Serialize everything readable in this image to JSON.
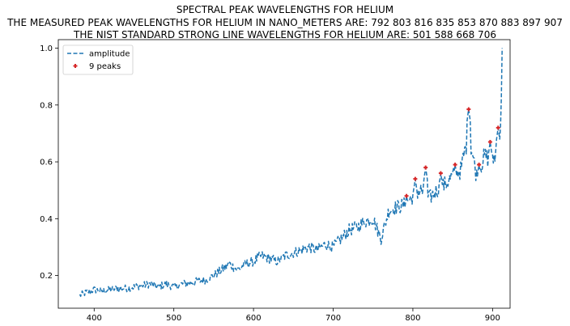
{
  "titles": {
    "line1": "SPECTRAL PEAK WAVELENGTHS FOR HELIUM",
    "line2": "THE MEASURED PEAK WAVELENGTHS FOR HELIUM IN NANO_METERS ARE: 792 803 816 835 853 870 883 897 907",
    "line3": "THE NIST STANDARD STRONG LINE WAVELENGTHS FOR HELIUM ARE: 501 588 668 706"
  },
  "legend": {
    "series_label": "amplitude",
    "peaks_label": "9 peaks"
  },
  "colors": {
    "series": "#1f77b4",
    "peaks": "#d62728"
  },
  "chart_data": {
    "type": "line",
    "title": "SPECTRAL PEAK WAVELENGTHS FOR HELIUM",
    "xlabel": "",
    "ylabel": "",
    "xlim": [
      355,
      922
    ],
    "ylim": [
      0.085,
      1.03
    ],
    "xticks": [
      400,
      500,
      600,
      700,
      800,
      900
    ],
    "yticks": [
      0.2,
      0.4,
      0.6,
      0.8,
      1.0
    ],
    "grid": false,
    "legend_position": "top-left",
    "series": [
      {
        "name": "amplitude",
        "style": "dashed",
        "x_range": [
          382,
          912
        ],
        "x": [
          382,
          390,
          400,
          410,
          420,
          430,
          440,
          450,
          460,
          470,
          480,
          490,
          500,
          510,
          520,
          530,
          540,
          550,
          560,
          570,
          580,
          590,
          600,
          610,
          620,
          630,
          640,
          650,
          660,
          670,
          680,
          690,
          700,
          710,
          720,
          730,
          740,
          750,
          760,
          770,
          780,
          790,
          800,
          810,
          820,
          830,
          840,
          850,
          860,
          870,
          880,
          890,
          900,
          905,
          910,
          912
        ],
        "y": [
          0.13,
          0.14,
          0.15,
          0.145,
          0.15,
          0.155,
          0.155,
          0.16,
          0.165,
          0.17,
          0.16,
          0.17,
          0.16,
          0.17,
          0.175,
          0.18,
          0.185,
          0.2,
          0.22,
          0.24,
          0.22,
          0.24,
          0.25,
          0.27,
          0.26,
          0.25,
          0.27,
          0.28,
          0.29,
          0.3,
          0.29,
          0.31,
          0.3,
          0.33,
          0.36,
          0.37,
          0.39,
          0.4,
          0.33,
          0.43,
          0.44,
          0.45,
          0.48,
          0.5,
          0.47,
          0.5,
          0.52,
          0.55,
          0.57,
          0.7,
          0.55,
          0.62,
          0.6,
          0.64,
          0.7,
          1.0
        ]
      }
    ],
    "peaks": {
      "name": "9 peaks",
      "x": [
        792,
        803,
        816,
        835,
        853,
        870,
        883,
        897,
        907
      ],
      "y": [
        0.48,
        0.54,
        0.58,
        0.56,
        0.59,
        0.785,
        0.59,
        0.67,
        0.72
      ]
    }
  }
}
